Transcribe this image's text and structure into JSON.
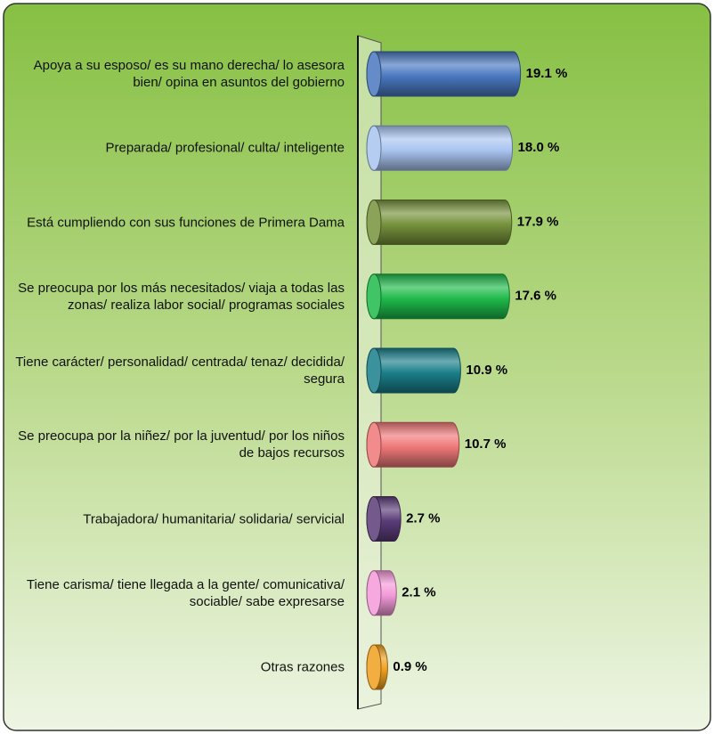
{
  "chart_data": {
    "type": "bar",
    "orientation": "horizontal",
    "categories": [
      "Apoya a su esposo/ es su mano derecha/ lo asesora bien/ opina en asuntos del gobierno",
      "Preparada/ profesional/ culta/ inteligente",
      "Está cumpliendo con sus funciones de Primera Dama",
      "Se preocupa por los más necesitados/ viaja a todas las zonas/ realiza labor social/ programas sociales",
      "Tiene carácter/ personalidad/ centrada/ tenaz/ decidida/ segura",
      "Se preocupa por la niñez/ por la juventud/ por los niños de bajos recursos",
      "Trabajadora/ humanitaria/ solidaria/ servicial",
      "Tiene carisma/ tiene llegada a la gente/ comunicativa/ sociable/ sabe expresarse",
      "Otras razones"
    ],
    "values": [
      19.1,
      18.0,
      17.9,
      17.6,
      10.9,
      10.7,
      2.7,
      2.1,
      0.9
    ],
    "value_labels": [
      "19.1 %",
      "18.0 %",
      "17.9 %",
      "17.6 %",
      "10.9 %",
      "10.7 %",
      "2.7 %",
      "2.1 %",
      "0.9 %"
    ],
    "colors": [
      "#4a78c0",
      "#a9c4f0",
      "#76923c",
      "#1fba4a",
      "#1a7f8a",
      "#f07878",
      "#5a3c78",
      "#f49ad8",
      "#f0a020"
    ]
  }
}
